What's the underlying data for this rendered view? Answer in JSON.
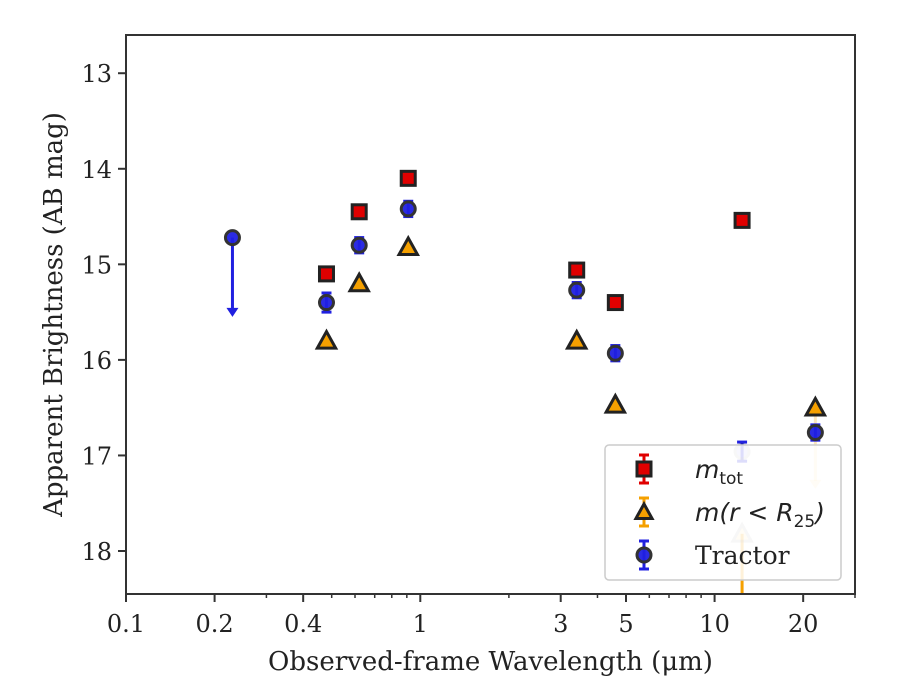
{
  "chart_data": {
    "type": "scatter",
    "xlabel": "Observed-frame Wavelength (μm)",
    "ylabel": "Apparent Brightness (AB mag)",
    "xscale": "log",
    "xlim": [
      0.1,
      30
    ],
    "ylim": [
      18.45,
      12.6
    ],
    "y_inverted": true,
    "xticks": [
      {
        "value": 0.1,
        "label": "0.1"
      },
      {
        "value": 0.2,
        "label": "0.2"
      },
      {
        "value": 0.4,
        "label": "0.4"
      },
      {
        "value": 1,
        "label": "1"
      },
      {
        "value": 3,
        "label": "3"
      },
      {
        "value": 5,
        "label": "5"
      },
      {
        "value": 10,
        "label": "10"
      },
      {
        "value": 20,
        "label": "20"
      }
    ],
    "yticks": [
      {
        "value": 13,
        "label": "13"
      },
      {
        "value": 14,
        "label": "14"
      },
      {
        "value": 15,
        "label": "15"
      },
      {
        "value": 16,
        "label": "16"
      },
      {
        "value": 17,
        "label": "17"
      },
      {
        "value": 18,
        "label": "18"
      }
    ],
    "legend": {
      "position": "lower-right",
      "entries": [
        {
          "label_main": "m",
          "label_sub": "tot",
          "series": "m_tot"
        },
        {
          "label_main": "m(r < R",
          "label_sub": "25",
          "label_tail": ")",
          "series": "m_r25"
        },
        {
          "label_main": "Tractor",
          "series": "tractor"
        }
      ]
    },
    "series": [
      {
        "name": "m_tot",
        "marker": "square",
        "color": "#e00000",
        "edge": "#222222",
        "points": [
          {
            "x": 0.48,
            "y": 15.1,
            "err": 0.05
          },
          {
            "x": 0.62,
            "y": 14.45,
            "err": 0.05
          },
          {
            "x": 0.91,
            "y": 14.1,
            "err": 0.05
          },
          {
            "x": 3.4,
            "y": 15.06,
            "err": 0.05
          },
          {
            "x": 4.6,
            "y": 15.4,
            "err": 0.05
          },
          {
            "x": 12.4,
            "y": 14.54,
            "err": 0.05
          }
        ]
      },
      {
        "name": "m_r25",
        "marker": "triangle",
        "color": "#f5a000",
        "edge": "#222222",
        "points": [
          {
            "x": 0.48,
            "y": 15.8
          },
          {
            "x": 0.62,
            "y": 15.2
          },
          {
            "x": 0.91,
            "y": 14.82
          },
          {
            "x": 3.4,
            "y": 15.8
          },
          {
            "x": 4.6,
            "y": 16.47
          },
          {
            "x": 12.4,
            "y": 17.82,
            "err_low": 0.7
          },
          {
            "x": 22,
            "y": 16.5,
            "limit_to": 17.35
          }
        ]
      },
      {
        "name": "tractor",
        "marker": "circle",
        "color": "#2020e0",
        "edge": "#333333",
        "points": [
          {
            "x": 0.23,
            "y": 14.72,
            "limit_to": 15.55
          },
          {
            "x": 0.48,
            "y": 15.4,
            "err": 0.1
          },
          {
            "x": 0.62,
            "y": 14.8,
            "err": 0.08
          },
          {
            "x": 0.91,
            "y": 14.42,
            "err": 0.08
          },
          {
            "x": 3.4,
            "y": 15.27,
            "err": 0.08
          },
          {
            "x": 4.6,
            "y": 15.93,
            "err": 0.08
          },
          {
            "x": 12.4,
            "y": 16.96,
            "err": 0.1
          },
          {
            "x": 22,
            "y": 16.76,
            "err": 0.08
          }
        ]
      }
    ]
  }
}
